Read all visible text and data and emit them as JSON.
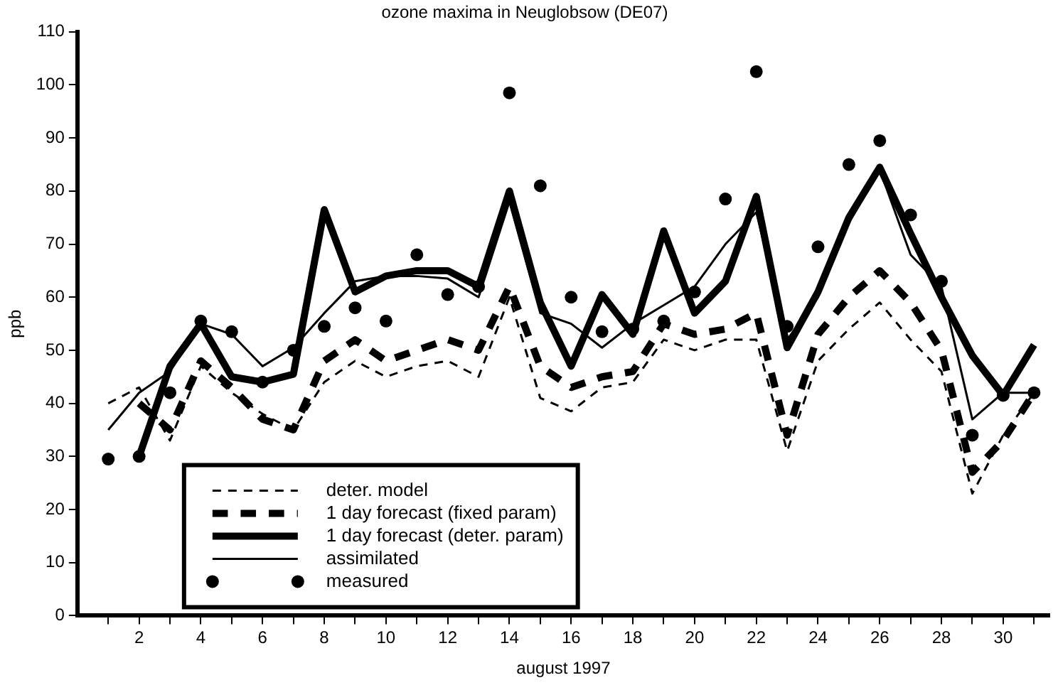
{
  "chart_data": {
    "type": "line",
    "title": "ozone maxima in Neuglobsow (DE07)",
    "xlabel": "august 1997",
    "ylabel": "ppb",
    "x": [
      1,
      2,
      3,
      4,
      5,
      6,
      7,
      8,
      9,
      10,
      11,
      12,
      13,
      14,
      15,
      16,
      17,
      18,
      19,
      20,
      21,
      22,
      23,
      24,
      25,
      26,
      27,
      28,
      29,
      30,
      31
    ],
    "series": [
      {
        "name": "deter. model",
        "color": "#000000",
        "line_style": "dashed",
        "marker": "none",
        "values": [
          40,
          43,
          33,
          47,
          42,
          38,
          35,
          44,
          48,
          45,
          47,
          48,
          45,
          60,
          41,
          38.5,
          43,
          44,
          52,
          50,
          52,
          52,
          31,
          48,
          54,
          59,
          52,
          46,
          23,
          34,
          42
        ]
      },
      {
        "name": "1 day forecast (fixed param)",
        "color": "#000000",
        "line_style": "dashed",
        "marker": "none",
        "x": [
          2,
          3,
          4,
          5,
          6,
          7,
          8,
          9,
          10,
          11,
          12,
          13,
          14,
          15,
          16,
          17,
          18,
          19,
          20,
          21,
          22,
          23,
          24,
          25,
          26,
          27,
          28,
          29,
          30,
          31
        ],
        "values": [
          40,
          35,
          48,
          43,
          37,
          35,
          48,
          52,
          48,
          50,
          52,
          50,
          62,
          47,
          43,
          45,
          46,
          55,
          53,
          54,
          57,
          34,
          53,
          60,
          65,
          59,
          50,
          27,
          33,
          42
        ]
      },
      {
        "name": "1 day forecast (deter. param)",
        "color": "#000000",
        "line_style": "solid",
        "marker": "none",
        "x": [
          2,
          3,
          4,
          5,
          6,
          7,
          8,
          9,
          10,
          11,
          12,
          13,
          14,
          15,
          16,
          17,
          18,
          19,
          20,
          21,
          22,
          23,
          24,
          25,
          26,
          27,
          28,
          29,
          30,
          31
        ],
        "values": [
          30,
          47,
          55,
          45,
          44,
          45.5,
          76.5,
          61,
          64,
          65,
          65,
          62,
          80,
          59,
          47,
          60.5,
          53,
          72.5,
          57,
          63,
          79,
          50.5,
          61,
          75,
          84.5,
          72,
          60,
          49,
          41.5,
          51
        ]
      },
      {
        "name": "assimilated",
        "color": "#000000",
        "line_style": "solid",
        "marker": "none",
        "values": [
          35,
          42,
          46,
          55,
          53,
          47,
          50.5,
          57,
          63,
          64,
          64,
          63.5,
          60,
          78,
          57,
          55,
          50.5,
          55,
          58.5,
          62,
          70,
          76,
          52,
          60,
          74,
          84,
          68,
          62,
          37,
          42,
          42
        ]
      },
      {
        "name": "measured",
        "type": "scatter",
        "color": "#000000",
        "marker": "circle",
        "values": [
          29.5,
          30,
          42,
          55.5,
          53.5,
          44,
          50,
          54.5,
          58,
          55.5,
          68,
          60.5,
          62,
          98.5,
          81,
          60,
          53.5,
          54,
          55.5,
          61,
          78.5,
          102.5,
          54.5,
          69.5,
          85,
          89.5,
          75.5,
          63,
          34,
          41.5,
          42
        ]
      }
    ],
    "xlim": [
      0,
      31.5
    ],
    "xticks": [
      {
        "value": 1,
        "label": null
      },
      2,
      {
        "value": 3,
        "label": null
      },
      4,
      {
        "value": 5,
        "label": null
      },
      6,
      {
        "value": 7,
        "label": null
      },
      8,
      {
        "value": 9,
        "label": null
      },
      10,
      {
        "value": 11,
        "label": null
      },
      12,
      {
        "value": 13,
        "label": null
      },
      14,
      {
        "value": 15,
        "label": null
      },
      16,
      {
        "value": 17,
        "label": null
      },
      18,
      {
        "value": 19,
        "label": null
      },
      20,
      {
        "value": 21,
        "label": null
      },
      22,
      {
        "value": 23,
        "label": null
      },
      24,
      {
        "value": 25,
        "label": null
      },
      26,
      {
        "value": 27,
        "label": null
      },
      28,
      {
        "value": 29,
        "label": null
      },
      30,
      {
        "value": 31,
        "label": null
      }
    ],
    "ylim": [
      0,
      110
    ],
    "yticks": [
      0,
      10,
      20,
      30,
      40,
      50,
      60,
      70,
      80,
      90,
      100,
      110
    ],
    "grid": false,
    "legend": "bottom left"
  }
}
